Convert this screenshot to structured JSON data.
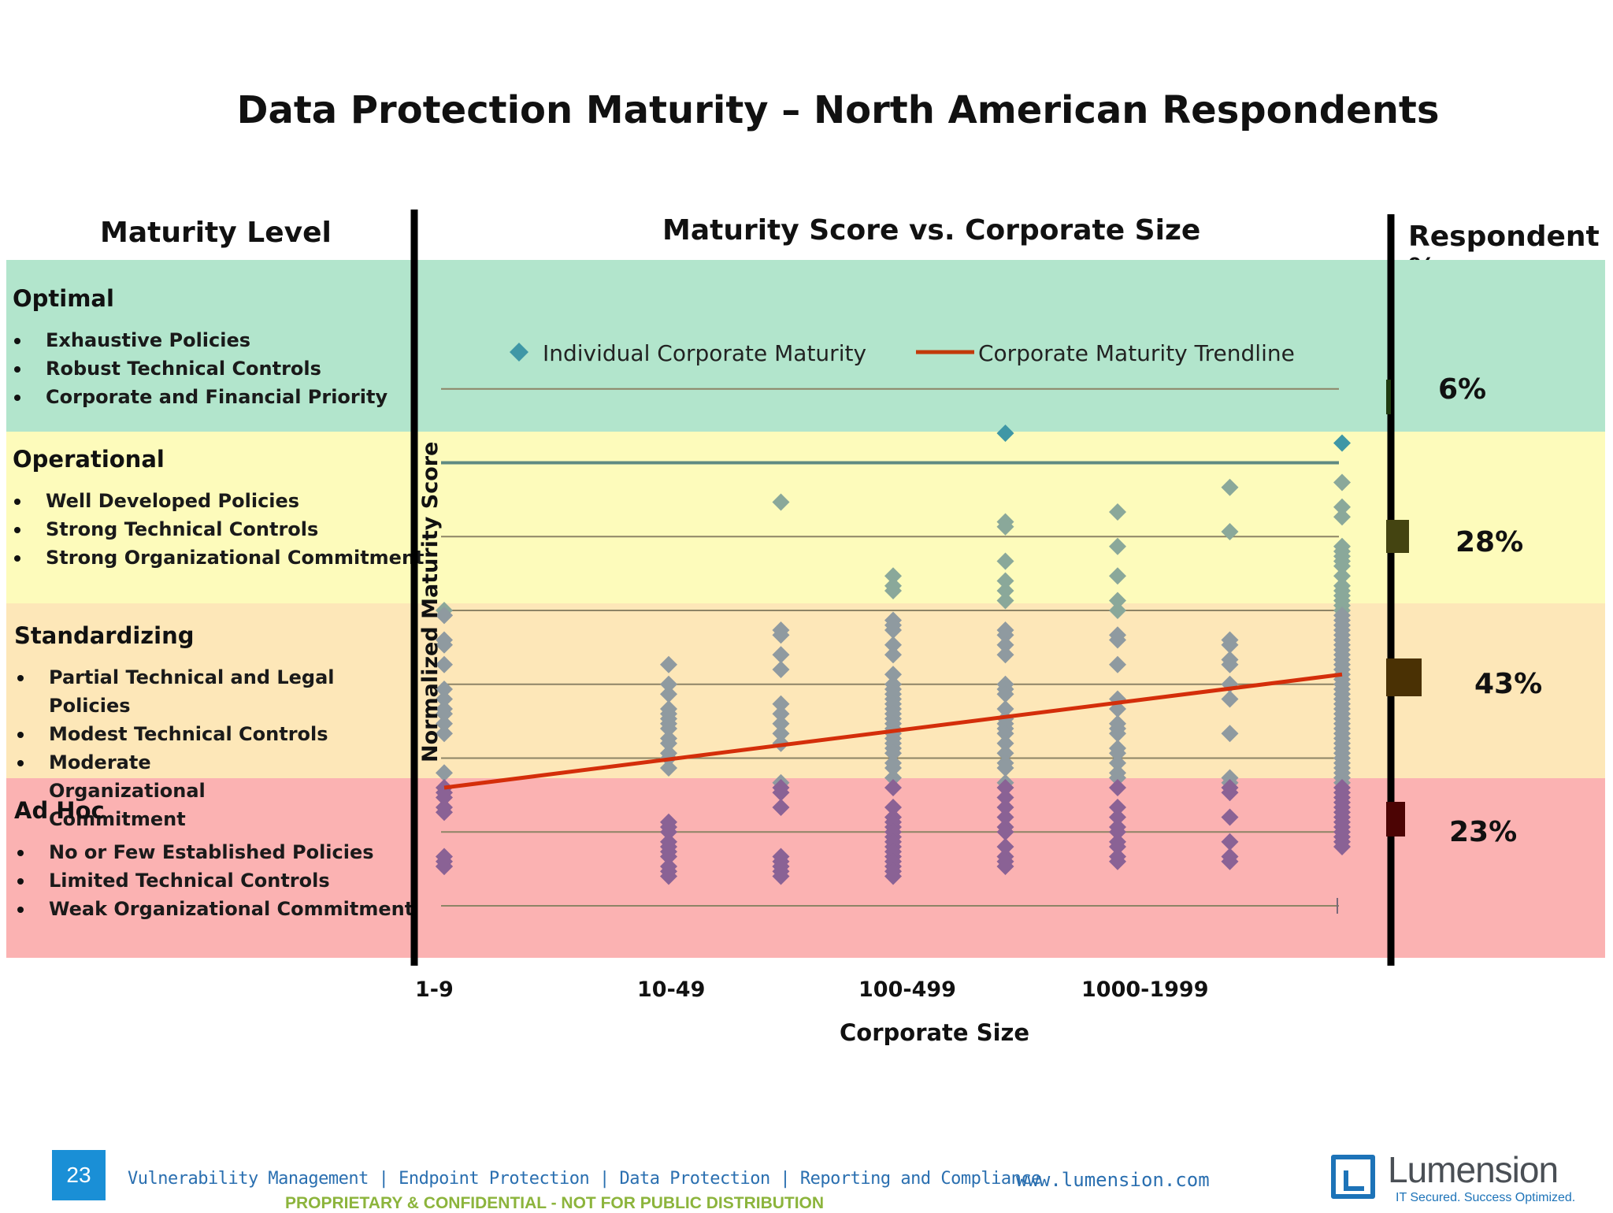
{
  "page": {
    "title": "Data Protection Maturity – North American Respondents",
    "col_maturity": "Maturity Level",
    "col_chart": "Maturity Score vs. Corporate Size",
    "col_respondent": "Respondent %"
  },
  "levels": [
    {
      "name": "Optimal",
      "bullets": [
        "Exhaustive Policies",
        "Robust Technical Controls",
        "Corporate and Financial Priority"
      ]
    },
    {
      "name": "Operational",
      "bullets": [
        "Well Developed Policies",
        "Strong Technical Controls",
        "Strong Organizational Commitment"
      ]
    },
    {
      "name": "Standardizing",
      "bullets": [
        "Partial Technical and Legal Policies",
        "Modest Technical Controls",
        "Moderate Organizational Commitment"
      ]
    },
    {
      "name": "Ad Hoc",
      "bullets": [
        "No or Few Established Policies",
        "Limited Technical Controls",
        "Weak Organizational Commitment"
      ]
    }
  ],
  "band_colors": [
    "#b2e5cc",
    "#fdfbbb",
    "#fde7b8",
    "#fbb2b2"
  ],
  "respondents": [
    {
      "label": "6%",
      "value": 6,
      "color": "#1f3a10"
    },
    {
      "label": "28%",
      "value": 28,
      "color": "#444411"
    },
    {
      "label": "43%",
      "value": 43,
      "color": "#4a3104"
    },
    {
      "label": "23%",
      "value": 23,
      "color": "#4c0404"
    }
  ],
  "chart_data": {
    "type": "scatter",
    "xlabel": "Corporate Size",
    "ylabel": "Normalized Maturity Score",
    "x_tick_labels": [
      "1-9",
      "10-49",
      "100-499",
      "1000-1999"
    ],
    "ylim": [
      0,
      100
    ],
    "legend": {
      "placement": "top",
      "entries": [
        "Individual Corporate Maturity",
        "Corporate Maturity Trendline"
      ]
    },
    "colors": {
      "optimal": "#3f97a6",
      "operational": "#8aa89a",
      "standardizing": "#8f9aa0",
      "adhoc": "#8a6295",
      "trendline": "#d42e0a"
    },
    "series": [
      {
        "name": "Individual Corporate Maturity",
        "groups": [
          {
            "x": 0,
            "y": [
              60,
              59,
              59,
              54,
              53,
              49,
              44,
              42,
              40,
              39,
              37,
              35,
              27,
              24,
              23,
              22,
              20,
              19,
              10,
              9,
              8,
              8
            ]
          },
          {
            "x": 2,
            "y": [
              49,
              45,
              43,
              40,
              39,
              38,
              37,
              36,
              34,
              33,
              31,
              30,
              28,
              17,
              16,
              15,
              13,
              12,
              11,
              10,
              8,
              7,
              6
            ]
          },
          {
            "x": 3,
            "y": [
              82,
              56,
              55,
              51,
              48,
              41,
              39,
              37,
              35,
              33,
              25,
              24,
              23,
              20,
              10,
              9,
              8,
              8,
              7,
              6
            ]
          },
          {
            "x": 4,
            "y": [
              67,
              65,
              64,
              58,
              57,
              56,
              53,
              51,
              47,
              45,
              44,
              43,
              42,
              41,
              40,
              39,
              38,
              37,
              36,
              35,
              34,
              33,
              32,
              31,
              29,
              28,
              26,
              24,
              20,
              18,
              17,
              16,
              15,
              14,
              13,
              12,
              11,
              10,
              9,
              8,
              7,
              6
            ]
          },
          {
            "x": 5,
            "y": [
              96,
              78,
              77,
              70,
              66,
              64,
              62,
              56,
              55,
              53,
              51,
              45,
              44,
              43,
              40,
              38,
              37,
              36,
              35,
              33,
              31,
              29,
              28,
              25,
              24,
              22,
              20,
              18,
              16,
              15,
              12,
              10,
              9,
              8
            ]
          },
          {
            "x": 6,
            "y": [
              80,
              73,
              67,
              62,
              60,
              55,
              54,
              49,
              42,
              40,
              37,
              36,
              35,
              32,
              31,
              29,
              27,
              26,
              24,
              20,
              18,
              16,
              15,
              13,
              12,
              10,
              9
            ]
          },
          {
            "x": 7,
            "y": [
              85,
              76,
              54,
              53,
              50,
              49,
              45,
              42,
              35,
              26,
              25,
              24,
              23,
              18,
              13,
              10,
              9
            ]
          },
          {
            "x": 8,
            "y": [
              94,
              86,
              81,
              79,
              73,
              72,
              71,
              70,
              69,
              67,
              65,
              64,
              63,
              62,
              61,
              60,
              59,
              58,
              57,
              56,
              55,
              54,
              53,
              52,
              51,
              50,
              49,
              48,
              47,
              46,
              45,
              44,
              43,
              42,
              41,
              40,
              39,
              38,
              37,
              36,
              35,
              34,
              33,
              32,
              31,
              30,
              29,
              28,
              27,
              26,
              25,
              24,
              23,
              22,
              21,
              20,
              19,
              18,
              17,
              16,
              15,
              14,
              13,
              12
            ]
          }
        ]
      },
      {
        "name": "Corporate Maturity Trendline",
        "x": [
          0,
          8
        ],
        "y": [
          24,
          47
        ]
      }
    ]
  },
  "footer": {
    "page_number": "23",
    "links": "Vulnerability Management | Endpoint Protection | Data Protection | Reporting and Compliance",
    "confidential": "PROPRIETARY & CONFIDENTIAL - NOT FOR PUBLIC DISTRIBUTION",
    "url": "www.lumension.com",
    "logo_name": "Lumension",
    "logo_tagline": "IT Secured. Success Optimized."
  }
}
